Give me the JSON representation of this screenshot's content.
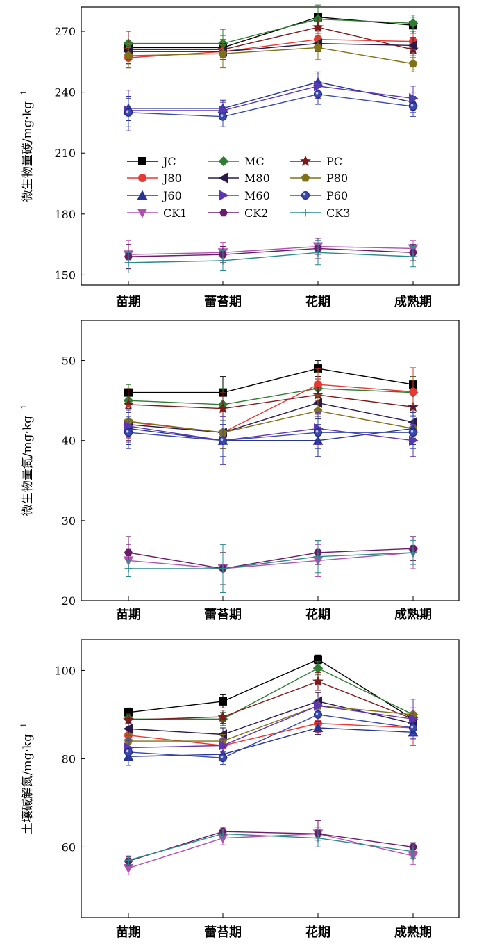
{
  "chart_data": [
    {
      "type": "line",
      "ylabel": "微生物量碳/mg·kg",
      "ylabel_superscript": "−1",
      "categories": [
        "苗期",
        "蕾苔期",
        "花期",
        "成熟期"
      ],
      "ylim": [
        145,
        282
      ],
      "yticks": [
        150,
        180,
        210,
        240,
        270
      ],
      "grid": false,
      "legend": "upper-left, 3 columns",
      "series": [
        {
          "name": "JC",
          "color": "#000000",
          "marker": "square",
          "values": [
            262,
            262,
            277,
            273
          ],
          "err": [
            8,
            6,
            5,
            4
          ]
        },
        {
          "name": "MC",
          "color": "#2e7d32",
          "marker": "diamond",
          "values": [
            264,
            264,
            276,
            274
          ],
          "err": [
            6,
            7,
            7,
            4
          ]
        },
        {
          "name": "PC",
          "color": "#7b1b1b",
          "marker": "star",
          "values": [
            261,
            261,
            272,
            261
          ],
          "err": [
            9,
            5,
            5,
            4
          ]
        },
        {
          "name": "J80",
          "color": "#e53935",
          "marker": "circle",
          "values": [
            257,
            260,
            266,
            265
          ],
          "err": [
            5,
            4,
            4,
            4
          ]
        },
        {
          "name": "M80",
          "color": "#2a1a4a",
          "marker": "triangle-left",
          "values": [
            260,
            260,
            264,
            263
          ],
          "err": [
            4,
            4,
            4,
            4
          ]
        },
        {
          "name": "P80",
          "color": "#807018",
          "marker": "pentagon",
          "values": [
            258,
            259,
            262,
            254
          ],
          "err": [
            6,
            7,
            6,
            4
          ]
        },
        {
          "name": "J60",
          "color": "#283593",
          "marker": "triangle-up",
          "values": [
            232,
            232,
            245,
            235
          ],
          "err": [
            6,
            4,
            5,
            5
          ]
        },
        {
          "name": "M60",
          "color": "#5e35b1",
          "marker": "triangle-right",
          "values": [
            231,
            231,
            243,
            237
          ],
          "err": [
            10,
            4,
            6,
            6
          ]
        },
        {
          "name": "P60",
          "color": "#3949ab",
          "marker": "circle-dot",
          "values": [
            230,
            228,
            239,
            233
          ],
          "err": [
            7,
            5,
            5,
            5
          ]
        },
        {
          "name": "CK1",
          "color": "#b050b0",
          "marker": "triangle-down",
          "values": [
            160,
            161,
            164,
            163
          ],
          "err": [
            7,
            5,
            4,
            4
          ]
        },
        {
          "name": "CK2",
          "color": "#6a1b6a",
          "marker": "hexagon",
          "values": [
            159,
            160,
            163,
            161
          ],
          "err": [
            6,
            4,
            5,
            4
          ]
        },
        {
          "name": "CK3",
          "color": "#2a8a8a",
          "marker": "plus",
          "values": [
            156,
            157,
            161,
            159
          ],
          "err": [
            5,
            5,
            6,
            5
          ]
        }
      ]
    },
    {
      "type": "line",
      "ylabel": "微生物量氮/mg·kg",
      "ylabel_superscript": "−1",
      "categories": [
        "苗期",
        "蕾苔期",
        "花期",
        "成熟期"
      ],
      "ylim": [
        20,
        55
      ],
      "yticks": [
        20,
        30,
        40,
        50
      ],
      "grid": false,
      "legend": "none",
      "series": [
        {
          "name": "JC",
          "color": "#000000",
          "marker": "square",
          "values": [
            46,
            46,
            49,
            47
          ],
          "err": [
            1,
            2,
            1,
            1
          ]
        },
        {
          "name": "MC",
          "color": "#2e7d32",
          "marker": "diamond",
          "values": [
            45,
            44.5,
            46.5,
            46
          ],
          "err": [
            2,
            2,
            2,
            2
          ]
        },
        {
          "name": "PC",
          "color": "#7b1b1b",
          "marker": "star",
          "values": [
            44.5,
            44,
            45.7,
            44.2
          ],
          "err": [
            2,
            2,
            2,
            2
          ]
        },
        {
          "name": "J80",
          "color": "#e53935",
          "marker": "circle",
          "values": [
            42.3,
            41,
            47,
            46.1
          ],
          "err": [
            2,
            2,
            2,
            3
          ]
        },
        {
          "name": "M80",
          "color": "#2a1a4a",
          "marker": "triangle-left",
          "values": [
            42,
            41,
            44.7,
            42.3
          ],
          "err": [
            2,
            2,
            2,
            2
          ]
        },
        {
          "name": "P80",
          "color": "#807018",
          "marker": "pentagon",
          "values": [
            42.4,
            41,
            43.7,
            41.5
          ],
          "err": [
            2,
            2,
            2,
            2
          ]
        },
        {
          "name": "J60",
          "color": "#283593",
          "marker": "triangle-up",
          "values": [
            41.5,
            40,
            40,
            41.5
          ],
          "err": [
            2,
            3,
            2,
            2
          ]
        },
        {
          "name": "M60",
          "color": "#5e35b1",
          "marker": "triangle-right",
          "values": [
            41.8,
            40,
            41.5,
            40
          ],
          "err": [
            2,
            3,
            2,
            2
          ]
        },
        {
          "name": "P60",
          "color": "#3949ab",
          "marker": "circle-dot",
          "values": [
            41,
            40,
            41,
            41
          ],
          "err": [
            2,
            2,
            2,
            2
          ]
        },
        {
          "name": "CK1",
          "color": "#b050b0",
          "marker": "triangle-down",
          "values": [
            25,
            24,
            25,
            26
          ],
          "err": [
            2,
            2,
            2,
            2
          ]
        },
        {
          "name": "CK2",
          "color": "#6a1b6a",
          "marker": "hexagon",
          "values": [
            26,
            24,
            26,
            26.5
          ],
          "err": [
            2,
            2,
            1.5,
            1.5
          ]
        },
        {
          "name": "CK3",
          "color": "#2a8a8a",
          "marker": "plus",
          "values": [
            24,
            24,
            25.5,
            26
          ],
          "err": [
            1,
            3,
            2,
            1.5
          ]
        }
      ]
    },
    {
      "type": "line",
      "ylabel": "土壤碱解氮/mg·kg",
      "ylabel_superscript": "−1",
      "categories": [
        "苗期",
        "蕾苔期",
        "花期",
        "成熟期"
      ],
      "ylim": [
        44,
        107
      ],
      "yticks": [
        60,
        80,
        100
      ],
      "grid": false,
      "legend": "none",
      "series": [
        {
          "name": "JC",
          "color": "#000000",
          "marker": "square",
          "values": [
            90.5,
            93,
            102.5,
            89
          ],
          "err": [
            1,
            1.5,
            1,
            1.5
          ]
        },
        {
          "name": "MC",
          "color": "#2e7d32",
          "marker": "diamond",
          "values": [
            89,
            89,
            100.5,
            90
          ],
          "err": [
            1,
            1.5,
            1.5,
            1.5
          ]
        },
        {
          "name": "PC",
          "color": "#7b1b1b",
          "marker": "star",
          "values": [
            88.8,
            89.5,
            97.5,
            89
          ],
          "err": [
            1.5,
            1.5,
            2,
            1.5
          ]
        },
        {
          "name": "J80",
          "color": "#e53935",
          "marker": "circle",
          "values": [
            85.3,
            83,
            88,
            87
          ],
          "err": [
            1.5,
            1.5,
            2,
            4
          ]
        },
        {
          "name": "M80",
          "color": "#2a1a4a",
          "marker": "triangle-left",
          "values": [
            86.8,
            85.5,
            93,
            88
          ],
          "err": [
            1.5,
            1.5,
            2,
            2
          ]
        },
        {
          "name": "P80",
          "color": "#807018",
          "marker": "pentagon",
          "values": [
            84,
            84,
            92,
            90
          ],
          "err": [
            1.5,
            1.5,
            2,
            1.5
          ]
        },
        {
          "name": "J60",
          "color": "#283593",
          "marker": "triangle-up",
          "values": [
            80.5,
            81,
            87,
            86
          ],
          "err": [
            2,
            1.5,
            1.5,
            1.5
          ]
        },
        {
          "name": "M60",
          "color": "#5e35b1",
          "marker": "triangle-right",
          "values": [
            82.5,
            83,
            92,
            89
          ],
          "err": [
            1.5,
            1.5,
            2,
            4.5
          ]
        },
        {
          "name": "P60",
          "color": "#3949ab",
          "marker": "circle-dot",
          "values": [
            81.5,
            80.2,
            90,
            87
          ],
          "err": [
            3,
            1.5,
            2,
            1.5
          ]
        },
        {
          "name": "CK1",
          "color": "#b050b0",
          "marker": "triangle-down",
          "values": [
            55.2,
            62,
            63,
            58
          ],
          "err": [
            1.5,
            1.5,
            1.5,
            2
          ]
        },
        {
          "name": "CK2",
          "color": "#6a1b6a",
          "marker": "hexagon",
          "values": [
            56.8,
            63.5,
            63,
            60
          ],
          "err": [
            1,
            1,
            3,
            1
          ]
        },
        {
          "name": "CK3",
          "color": "#2a8a8a",
          "marker": "plus",
          "values": [
            57,
            63,
            62,
            59
          ],
          "err": [
            1,
            1,
            2,
            1.5
          ]
        }
      ]
    }
  ]
}
